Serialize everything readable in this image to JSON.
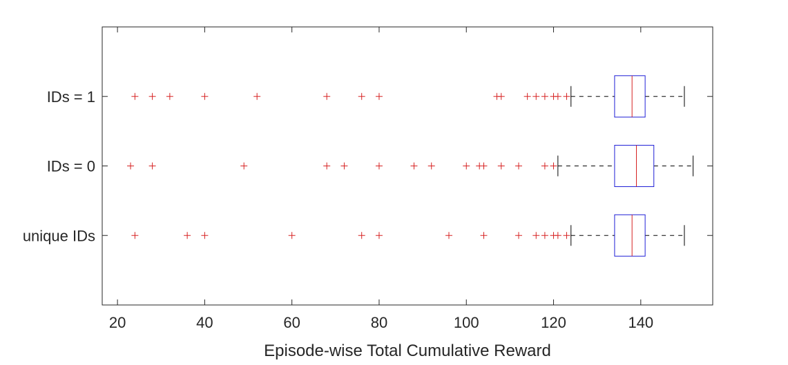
{
  "chart_data": {
    "type": "boxplot",
    "orientation": "horizontal",
    "title": "",
    "xlabel": "Episode-wise Total Cumulative Reward",
    "ylabel": "",
    "xlim": [
      16.5,
      156.5
    ],
    "xticks": [
      20,
      40,
      60,
      80,
      100,
      120,
      140
    ],
    "grid": false,
    "colors": {
      "box": "#1f1fd6",
      "median": "#d62020",
      "whisker": "#000000",
      "outlier": "#d62020",
      "axis": "#262626"
    },
    "categories": [
      "IDs = 1",
      "IDs = 0",
      "unique IDs"
    ],
    "boxes": [
      {
        "label": "IDs = 1",
        "whisker_low": 124,
        "q1": 134,
        "median": 138,
        "q3": 141,
        "whisker_high": 150,
        "outliers": [
          24,
          28,
          32,
          40,
          52,
          68,
          76,
          80,
          107,
          108,
          114,
          116,
          118,
          120,
          121,
          123
        ]
      },
      {
        "label": "IDs = 0",
        "whisker_low": 121,
        "q1": 134,
        "median": 139,
        "q3": 143,
        "whisker_high": 152,
        "outliers": [
          23,
          28,
          49,
          68,
          72,
          80,
          88,
          92,
          100,
          103,
          104,
          108,
          112,
          118,
          120
        ]
      },
      {
        "label": "unique IDs",
        "whisker_low": 124,
        "q1": 134,
        "median": 138,
        "q3": 141,
        "whisker_high": 150,
        "outliers": [
          24,
          36,
          40,
          60,
          76,
          80,
          96,
          104,
          112,
          116,
          118,
          120,
          121,
          123
        ]
      }
    ]
  }
}
